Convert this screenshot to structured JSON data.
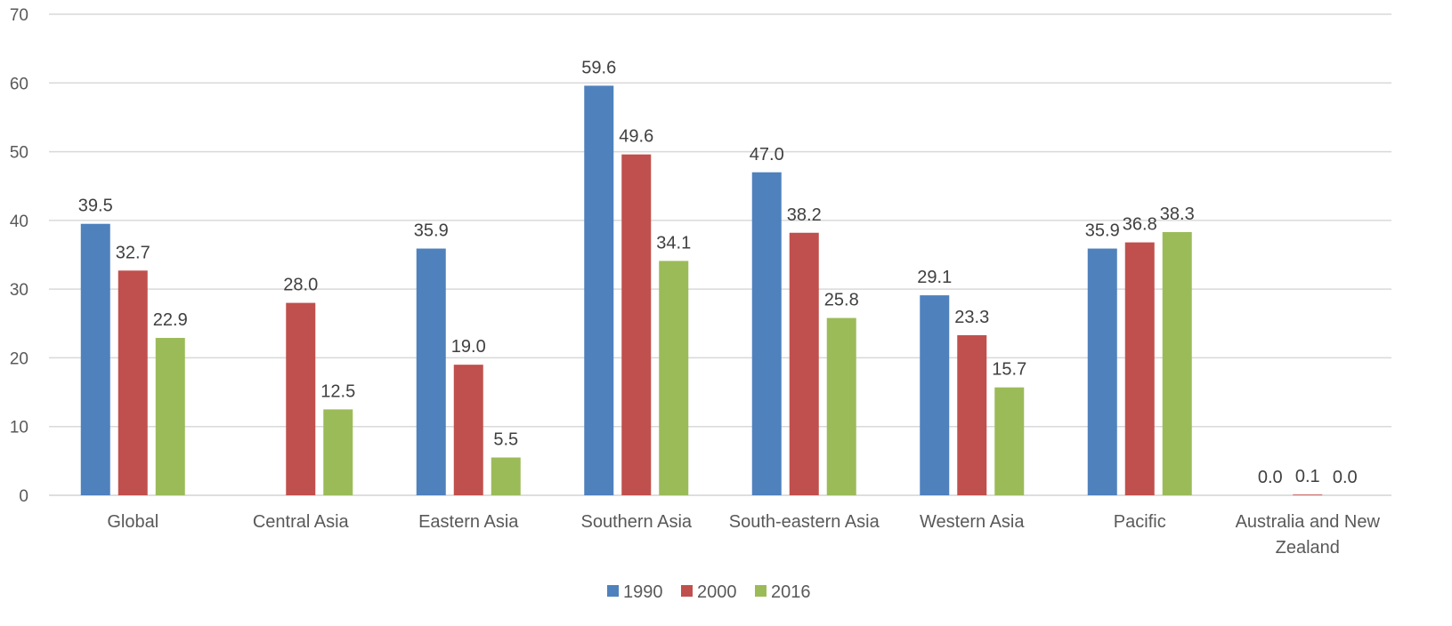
{
  "chart_data": {
    "type": "bar",
    "categories": [
      [
        "Global"
      ],
      [
        "Central Asia"
      ],
      [
        "Eastern Asia"
      ],
      [
        "Southern Asia"
      ],
      [
        "South-eastern Asia"
      ],
      [
        "Western Asia"
      ],
      [
        "Pacific"
      ],
      [
        "Australia and New",
        "Zealand"
      ]
    ],
    "series": [
      {
        "name": "1990",
        "color": "#4f81bd",
        "values": [
          39.5,
          null,
          35.9,
          59.6,
          47.0,
          29.1,
          35.9,
          0.0
        ],
        "labels": [
          "39.5",
          "",
          "35.9",
          "59.6",
          "47.0",
          "29.1",
          "35.9",
          "0.0"
        ]
      },
      {
        "name": "2000",
        "color": "#c0504d",
        "values": [
          32.7,
          28.0,
          19.0,
          49.6,
          38.2,
          23.3,
          36.8,
          0.1
        ],
        "labels": [
          "32.7",
          "28.0",
          "19.0",
          "49.6",
          "38.2",
          "23.3",
          "36.8",
          "0.1"
        ]
      },
      {
        "name": "2016",
        "color": "#9bbb59",
        "values": [
          22.9,
          12.5,
          5.5,
          34.1,
          25.8,
          15.7,
          38.3,
          0.0
        ],
        "labels": [
          "22.9",
          "12.5",
          "5.5",
          "34.1",
          "25.8",
          "15.7",
          "38.3",
          "0.0"
        ]
      }
    ],
    "ylim": [
      0,
      70
    ],
    "yticks": [
      "0",
      "10",
      "20",
      "30",
      "40",
      "50",
      "60",
      "70"
    ],
    "grid": true,
    "legend_position": "bottom"
  }
}
